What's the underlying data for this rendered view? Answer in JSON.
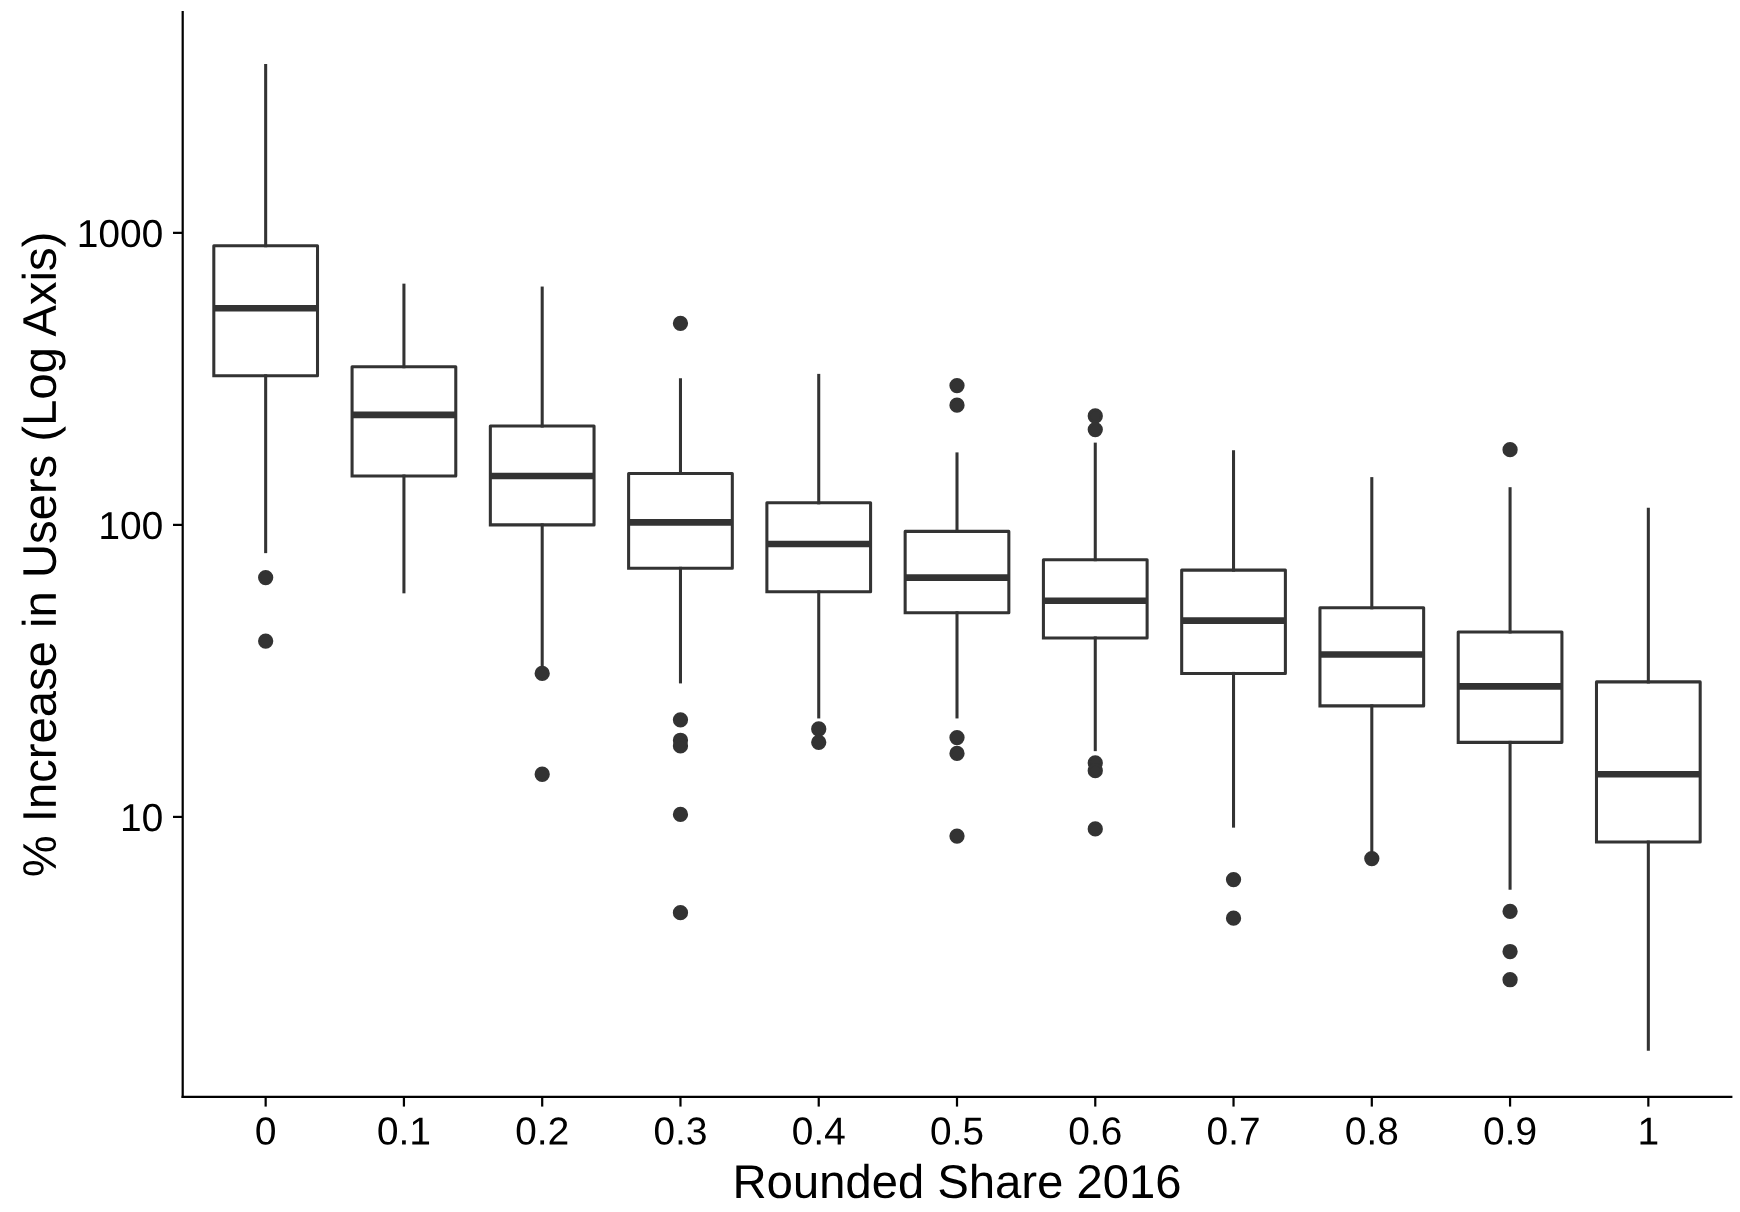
{
  "chart_data": {
    "type": "box",
    "xlabel": "Rounded Share 2016",
    "ylabel": "% Increase in Users (Log Axis)",
    "categories": [
      "0",
      "0.1",
      "0.2",
      "0.3",
      "0.4",
      "0.5",
      "0.6",
      "0.7",
      "0.8",
      "0.9",
      "1"
    ],
    "boxes": [
      {
        "low": 81,
        "q1": 324,
        "median": 552,
        "q3": 903,
        "high": 3740,
        "outliers": [
          66,
          40
        ]
      },
      {
        "low": 59,
        "q1": 147,
        "median": 238,
        "q3": 348,
        "high": 662
      },
      {
        "low": 32,
        "q1": 100,
        "median": 147,
        "q3": 218,
        "high": 647,
        "outliers": [
          31,
          14
        ]
      },
      {
        "low": 29,
        "q1": 71,
        "median": 102,
        "q3": 150,
        "high": 314,
        "outliers": [
          490,
          21.5,
          18.3,
          17.5,
          10.2,
          4.7
        ]
      },
      {
        "low": 22,
        "q1": 59,
        "median": 86,
        "q3": 119,
        "high": 325,
        "outliers": [
          20,
          18
        ]
      },
      {
        "low": 22,
        "q1": 50,
        "median": 66,
        "q3": 95,
        "high": 175,
        "outliers": [
          300,
          257,
          18.7,
          16.5,
          8.6
        ]
      },
      {
        "low": 17,
        "q1": 41,
        "median": 55,
        "q3": 76,
        "high": 189,
        "outliers": [
          236,
          212,
          15.3,
          14.4,
          9.1
        ]
      },
      {
        "low": 9.3,
        "q1": 31,
        "median": 47,
        "q3": 70,
        "high": 178,
        "outliers": [
          6.1,
          4.5
        ]
      },
      {
        "low": 7.5,
        "q1": 24,
        "median": 36,
        "q3": 52,
        "high": 144,
        "outliers": [
          7.2
        ]
      },
      {
        "low": 5.7,
        "q1": 18,
        "median": 28,
        "q3": 43,
        "high": 133,
        "outliers": [
          181,
          4.75,
          3.46,
          2.77
        ]
      },
      {
        "low": 1.6,
        "q1": 8.2,
        "median": 14,
        "q3": 29,
        "high": 113
      }
    ],
    "log": "y",
    "ylim": [
      1.1,
      5700
    ],
    "yticks": [
      10,
      100,
      1000
    ],
    "grid": false
  }
}
